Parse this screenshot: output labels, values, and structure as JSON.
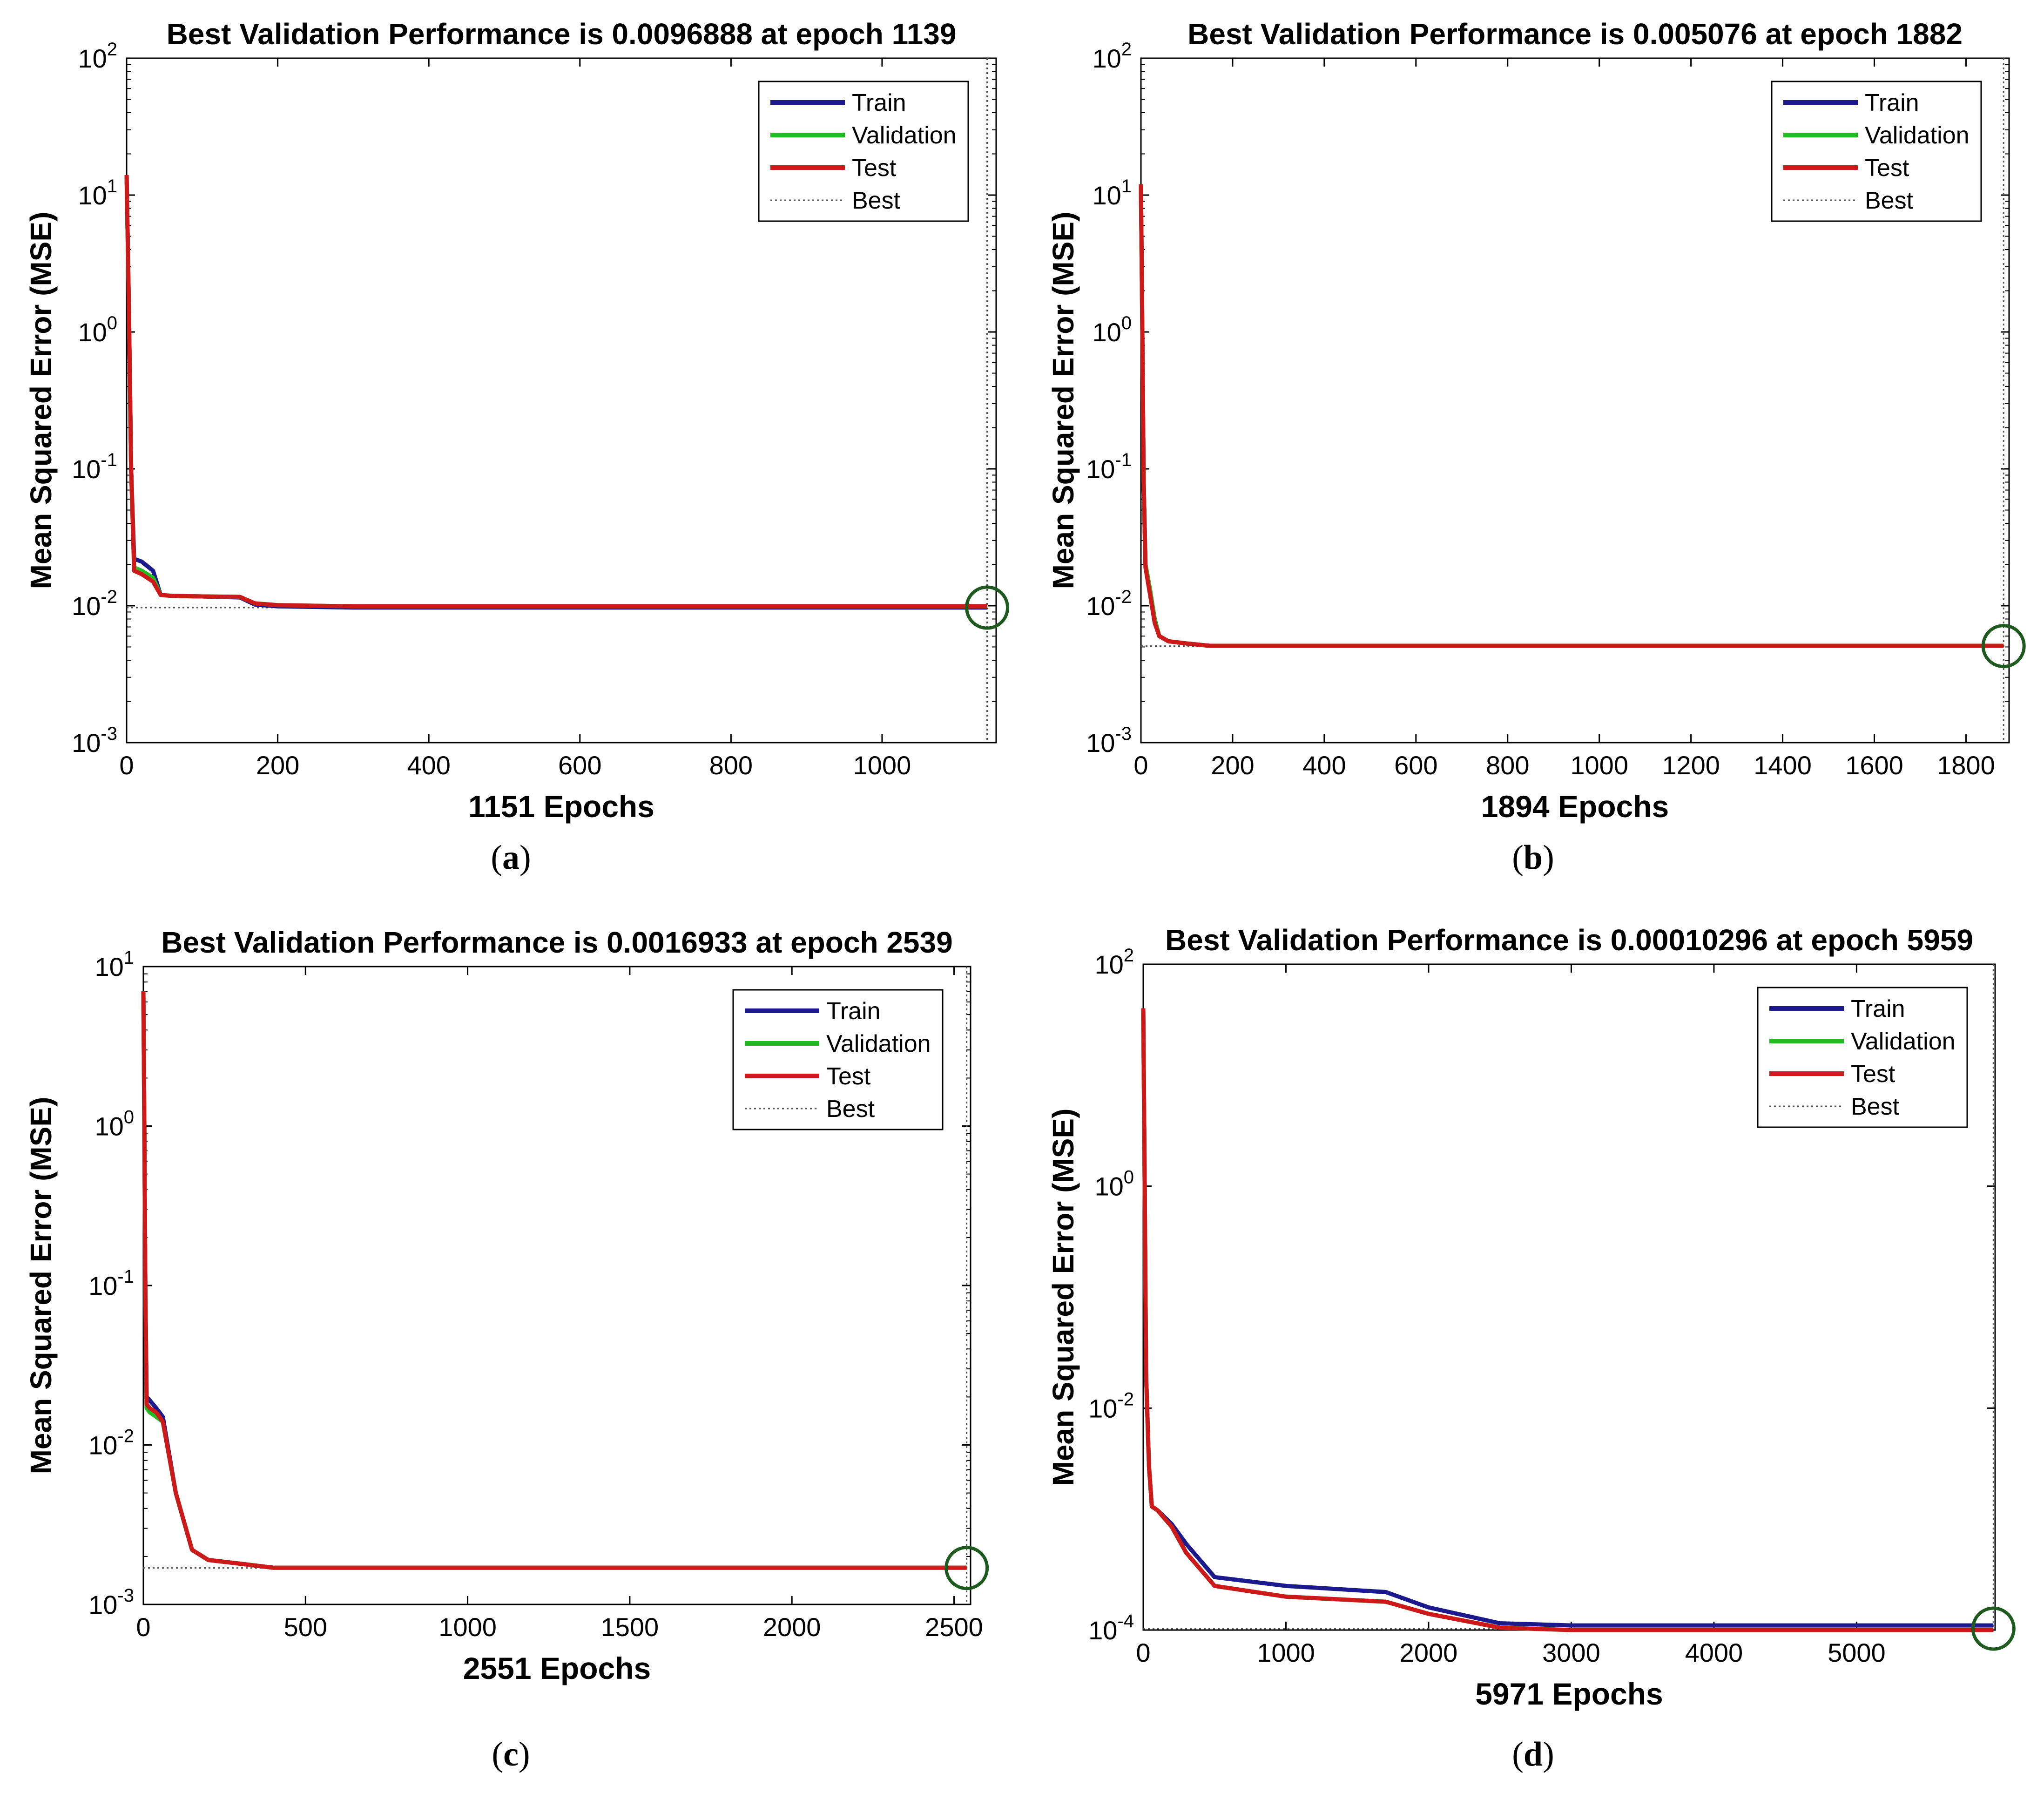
{
  "figure": {
    "panels": [
      {
        "label": "a"
      },
      {
        "label": "b"
      },
      {
        "label": "c"
      },
      {
        "label": "d"
      }
    ]
  },
  "colors": {
    "train": "#1a1a8c",
    "validation": "#22bb22",
    "test": "#cc1a1a",
    "best": "#555555",
    "marker": "#1e5a1e",
    "axis": "#000000"
  },
  "chart_data": [
    {
      "type": "line",
      "title": "Best Validation Performance is 0.0096888 at epoch 1139",
      "xlabel": "1151 Epochs",
      "ylabel": "Mean Squared Error  (MSE)",
      "yscale": "log",
      "xlim": [
        0,
        1151
      ],
      "ylim_exp": [
        -3,
        2
      ],
      "xticks": [
        0,
        200,
        400,
        600,
        800,
        1000
      ],
      "xtick_labels": [
        "0",
        "200",
        "400",
        "600",
        "800",
        "1000"
      ],
      "ytick_exps": [
        -3,
        -2,
        -1,
        0,
        1,
        2
      ],
      "ytick_base": "10",
      "ytick_exp_labels": [
        "-3",
        "-2",
        "-1",
        "0",
        "1",
        "2"
      ],
      "legend": [
        "Train",
        "Validation",
        "Test",
        "Best"
      ],
      "legend_position": "top-right",
      "best": {
        "epoch": 1139,
        "value": 0.0096888
      },
      "series": [
        {
          "name": "Train",
          "x": [
            0,
            3,
            6,
            10,
            20,
            35,
            45,
            60,
            100,
            150,
            170,
            200,
            300,
            400,
            600,
            800,
            1000,
            1139
          ],
          "y": [
            14,
            1.5,
            0.1,
            0.022,
            0.021,
            0.018,
            0.012,
            0.0118,
            0.0117,
            0.0115,
            0.0102,
            0.0099,
            0.0097,
            0.0097,
            0.0097,
            0.0097,
            0.0097,
            0.0097
          ]
        },
        {
          "name": "Validation",
          "x": [
            0,
            3,
            6,
            10,
            20,
            35,
            45,
            60,
            100,
            150,
            170,
            200,
            300,
            400,
            600,
            800,
            1000,
            1139
          ],
          "y": [
            14,
            1.5,
            0.1,
            0.019,
            0.018,
            0.016,
            0.012,
            0.0118,
            0.0117,
            0.0116,
            0.0104,
            0.0101,
            0.0099,
            0.0099,
            0.0099,
            0.0099,
            0.0099,
            0.0099
          ]
        },
        {
          "name": "Test",
          "x": [
            0,
            3,
            6,
            10,
            20,
            35,
            45,
            60,
            100,
            150,
            170,
            200,
            300,
            400,
            600,
            800,
            1000,
            1139
          ],
          "y": [
            14,
            1.5,
            0.1,
            0.018,
            0.017,
            0.015,
            0.012,
            0.0118,
            0.0117,
            0.0116,
            0.0104,
            0.0101,
            0.0099,
            0.0099,
            0.0099,
            0.0099,
            0.0099,
            0.0099
          ]
        }
      ]
    },
    {
      "type": "line",
      "title": "Best Validation Performance is 0.005076 at epoch 1882",
      "xlabel": "1894 Epochs",
      "ylabel": "Mean Squared Error  (MSE)",
      "yscale": "log",
      "xlim": [
        0,
        1894
      ],
      "ylim_exp": [
        -3,
        2
      ],
      "xticks": [
        0,
        200,
        400,
        600,
        800,
        1000,
        1200,
        1400,
        1600,
        1800
      ],
      "xtick_labels": [
        "0",
        "200",
        "400",
        "600",
        "800",
        "1000",
        "1200",
        "1400",
        "1600",
        "1800"
      ],
      "ytick_exps": [
        -3,
        -2,
        -1,
        0,
        1,
        2
      ],
      "ytick_base": "10",
      "ytick_exp_labels": [
        "-3",
        "-2",
        "-1",
        "0",
        "1",
        "2"
      ],
      "legend": [
        "Train",
        "Validation",
        "Test",
        "Best"
      ],
      "legend_position": "top-right",
      "best": {
        "epoch": 1882,
        "value": 0.005076
      },
      "series": [
        {
          "name": "Train",
          "x": [
            0,
            3,
            6,
            10,
            20,
            30,
            40,
            60,
            100,
            150,
            250,
            400,
            800,
            1200,
            1600,
            1882
          ],
          "y": [
            12,
            1.0,
            0.08,
            0.02,
            0.013,
            0.008,
            0.006,
            0.0055,
            0.0053,
            0.0051,
            0.0051,
            0.0051,
            0.0051,
            0.0051,
            0.0051,
            0.0051
          ]
        },
        {
          "name": "Validation",
          "x": [
            0,
            3,
            6,
            10,
            20,
            30,
            40,
            60,
            100,
            150,
            250,
            400,
            800,
            1200,
            1600,
            1882
          ],
          "y": [
            12,
            1.0,
            0.08,
            0.02,
            0.013,
            0.008,
            0.006,
            0.0055,
            0.0053,
            0.0051,
            0.0051,
            0.0051,
            0.0051,
            0.0051,
            0.0051,
            0.0051
          ]
        },
        {
          "name": "Test",
          "x": [
            0,
            3,
            6,
            10,
            20,
            30,
            40,
            60,
            100,
            150,
            250,
            400,
            800,
            1200,
            1600,
            1882
          ],
          "y": [
            12,
            1.0,
            0.08,
            0.019,
            0.012,
            0.0075,
            0.006,
            0.0055,
            0.0053,
            0.0051,
            0.0051,
            0.0051,
            0.0051,
            0.0051,
            0.0051,
            0.0051
          ]
        }
      ]
    },
    {
      "type": "line",
      "title": "Best Validation Performance is 0.0016933 at epoch 2539",
      "xlabel": "2551 Epochs",
      "ylabel": "Mean Squared Error  (MSE)",
      "yscale": "log",
      "xlim": [
        0,
        2551
      ],
      "ylim_exp": [
        -3,
        1
      ],
      "xticks": [
        0,
        500,
        1000,
        1500,
        2000,
        2500
      ],
      "xtick_labels": [
        "0",
        "500",
        "1000",
        "1500",
        "2000",
        "2500"
      ],
      "ytick_exps": [
        -3,
        -2,
        -1,
        0,
        1
      ],
      "ytick_base": "10",
      "ytick_exp_labels": [
        "-3",
        "-2",
        "-1",
        "0",
        "1"
      ],
      "legend": [
        "Train",
        "Validation",
        "Test",
        "Best"
      ],
      "legend_position": "top-right",
      "best": {
        "epoch": 2539,
        "value": 0.0016933
      },
      "series": [
        {
          "name": "Train",
          "x": [
            0,
            3,
            6,
            10,
            20,
            40,
            60,
            100,
            150,
            200,
            300,
            400,
            800,
            1500,
            2000,
            2539
          ],
          "y": [
            7,
            1.0,
            0.1,
            0.02,
            0.019,
            0.017,
            0.015,
            0.005,
            0.0022,
            0.0019,
            0.0018,
            0.0017,
            0.0017,
            0.0017,
            0.0017,
            0.0017
          ]
        },
        {
          "name": "Validation",
          "x": [
            0,
            3,
            6,
            10,
            20,
            40,
            60,
            100,
            150,
            200,
            300,
            400,
            800,
            1500,
            2000,
            2539
          ],
          "y": [
            7,
            1.0,
            0.1,
            0.017,
            0.016,
            0.015,
            0.014,
            0.005,
            0.0022,
            0.0019,
            0.0018,
            0.0017,
            0.0017,
            0.0017,
            0.0017,
            0.0017
          ]
        },
        {
          "name": "Test",
          "x": [
            0,
            3,
            6,
            10,
            20,
            40,
            60,
            100,
            150,
            200,
            300,
            400,
            800,
            1500,
            2000,
            2539
          ],
          "y": [
            7,
            1.0,
            0.1,
            0.018,
            0.017,
            0.016,
            0.014,
            0.005,
            0.0022,
            0.0019,
            0.0018,
            0.0017,
            0.0017,
            0.0017,
            0.0017,
            0.0017
          ]
        }
      ]
    },
    {
      "type": "line",
      "title": "Best Validation Performance is 0.00010296 at epoch 5959",
      "xlabel": "5971 Epochs",
      "ylabel": "Mean Squared Error  (MSE)",
      "yscale": "log",
      "xlim": [
        0,
        5971
      ],
      "ylim_exp": [
        -4,
        2
      ],
      "xticks": [
        0,
        1000,
        2000,
        3000,
        4000,
        5000
      ],
      "xtick_labels": [
        "0",
        "1000",
        "2000",
        "3000",
        "4000",
        "5000"
      ],
      "ytick_exps": [
        -4,
        -2,
        0,
        2
      ],
      "ytick_base": "10",
      "ytick_exp_labels": [
        "-4",
        "-2",
        "0",
        "2"
      ],
      "legend": [
        "Train",
        "Validation",
        "Test",
        "Best"
      ],
      "legend_position": "top-right",
      "best": {
        "epoch": 5959,
        "value": 0.00010296
      },
      "series": [
        {
          "name": "Train",
          "x": [
            0,
            10,
            20,
            40,
            60,
            100,
            200,
            300,
            500,
            1000,
            1700,
            2000,
            2500,
            3000,
            4000,
            5000,
            5959
          ],
          "y": [
            40,
            1.0,
            0.02,
            0.003,
            0.0013,
            0.0012,
            0.0009,
            0.0006,
            0.0003,
            0.00025,
            0.00022,
            0.00016,
            0.000115,
            0.00011,
            0.00011,
            0.00011,
            0.00011
          ]
        },
        {
          "name": "Validation",
          "x": [
            0,
            10,
            20,
            40,
            60,
            100,
            200,
            300,
            500,
            1000,
            1700,
            2000,
            2500,
            3000,
            4000,
            5000,
            5959
          ],
          "y": [
            40,
            1.0,
            0.02,
            0.003,
            0.0013,
            0.0012,
            0.00085,
            0.0005,
            0.00025,
            0.0002,
            0.00018,
            0.00014,
            0.000105,
            0.0001,
            0.0001,
            0.0001,
            0.0001
          ]
        },
        {
          "name": "Test",
          "x": [
            0,
            10,
            20,
            40,
            60,
            100,
            200,
            300,
            500,
            1000,
            1700,
            2000,
            2500,
            3000,
            4000,
            5000,
            5959
          ],
          "y": [
            40,
            1.0,
            0.02,
            0.003,
            0.0013,
            0.0012,
            0.00085,
            0.0005,
            0.00025,
            0.0002,
            0.00018,
            0.00014,
            0.000105,
            0.0001,
            0.0001,
            0.0001,
            0.0001
          ]
        }
      ]
    }
  ]
}
